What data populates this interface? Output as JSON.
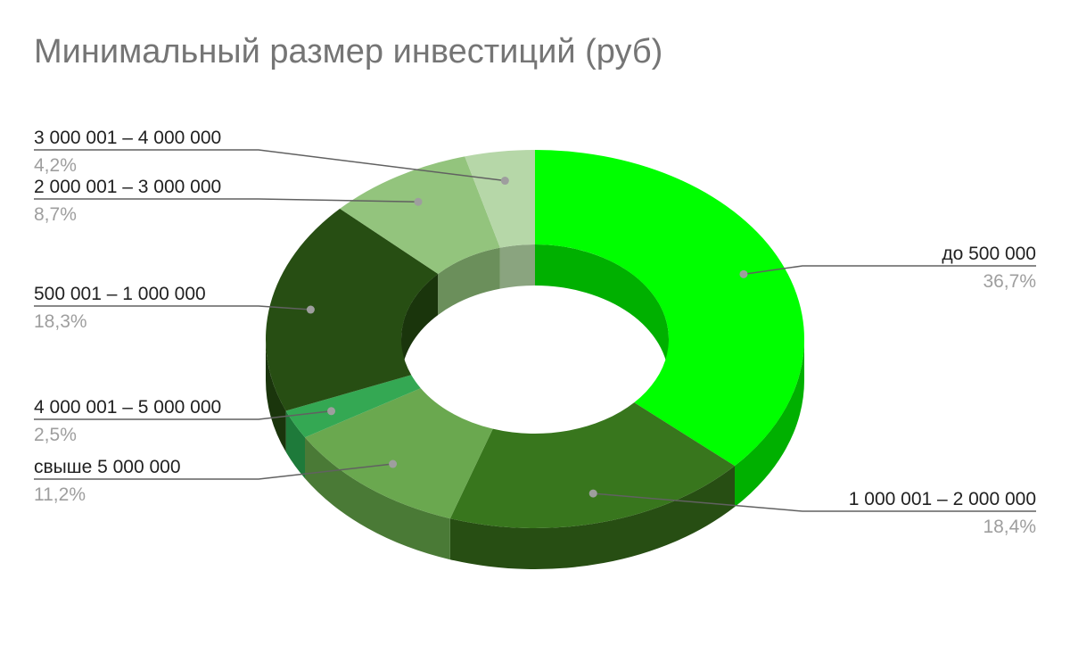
{
  "chart_data": {
    "type": "pie",
    "title": "Минимальный размер инвестиций (руб)",
    "slices": [
      {
        "label": "до 500 000",
        "value": 36.7,
        "value_label": "36,7%",
        "color": "#00ff00",
        "side_color": "#00b000"
      },
      {
        "label": "1 000 001 – 2 000 000",
        "value": 18.4,
        "value_label": "18,4%",
        "color": "#38761d",
        "side_color": "#274e13"
      },
      {
        "label": "свыше 5 000 000",
        "value": 11.2,
        "value_label": "11,2%",
        "color": "#6aa84f",
        "side_color": "#4a7a36"
      },
      {
        "label": "4 000 001 – 5 000 000",
        "value": 2.5,
        "value_label": "2,5%",
        "color": "#34a853",
        "side_color": "#1e7a3a"
      },
      {
        "label": "500 001 – 1 000 000",
        "value": 18.3,
        "value_label": "18,3%",
        "color": "#274e13",
        "side_color": "#1a350c"
      },
      {
        "label": "2 000 001 – 3 000 000",
        "value": 8.7,
        "value_label": "8,7%",
        "color": "#93c47d",
        "side_color": "#6b8f5b"
      },
      {
        "label": "3 000 001 – 4 000 000",
        "value": 4.2,
        "value_label": "4,2%",
        "color": "#b6d7a8",
        "side_color": "#8aa47f"
      }
    ],
    "donut": true,
    "three_d": true,
    "legend": "none",
    "labels_position": "outside"
  }
}
